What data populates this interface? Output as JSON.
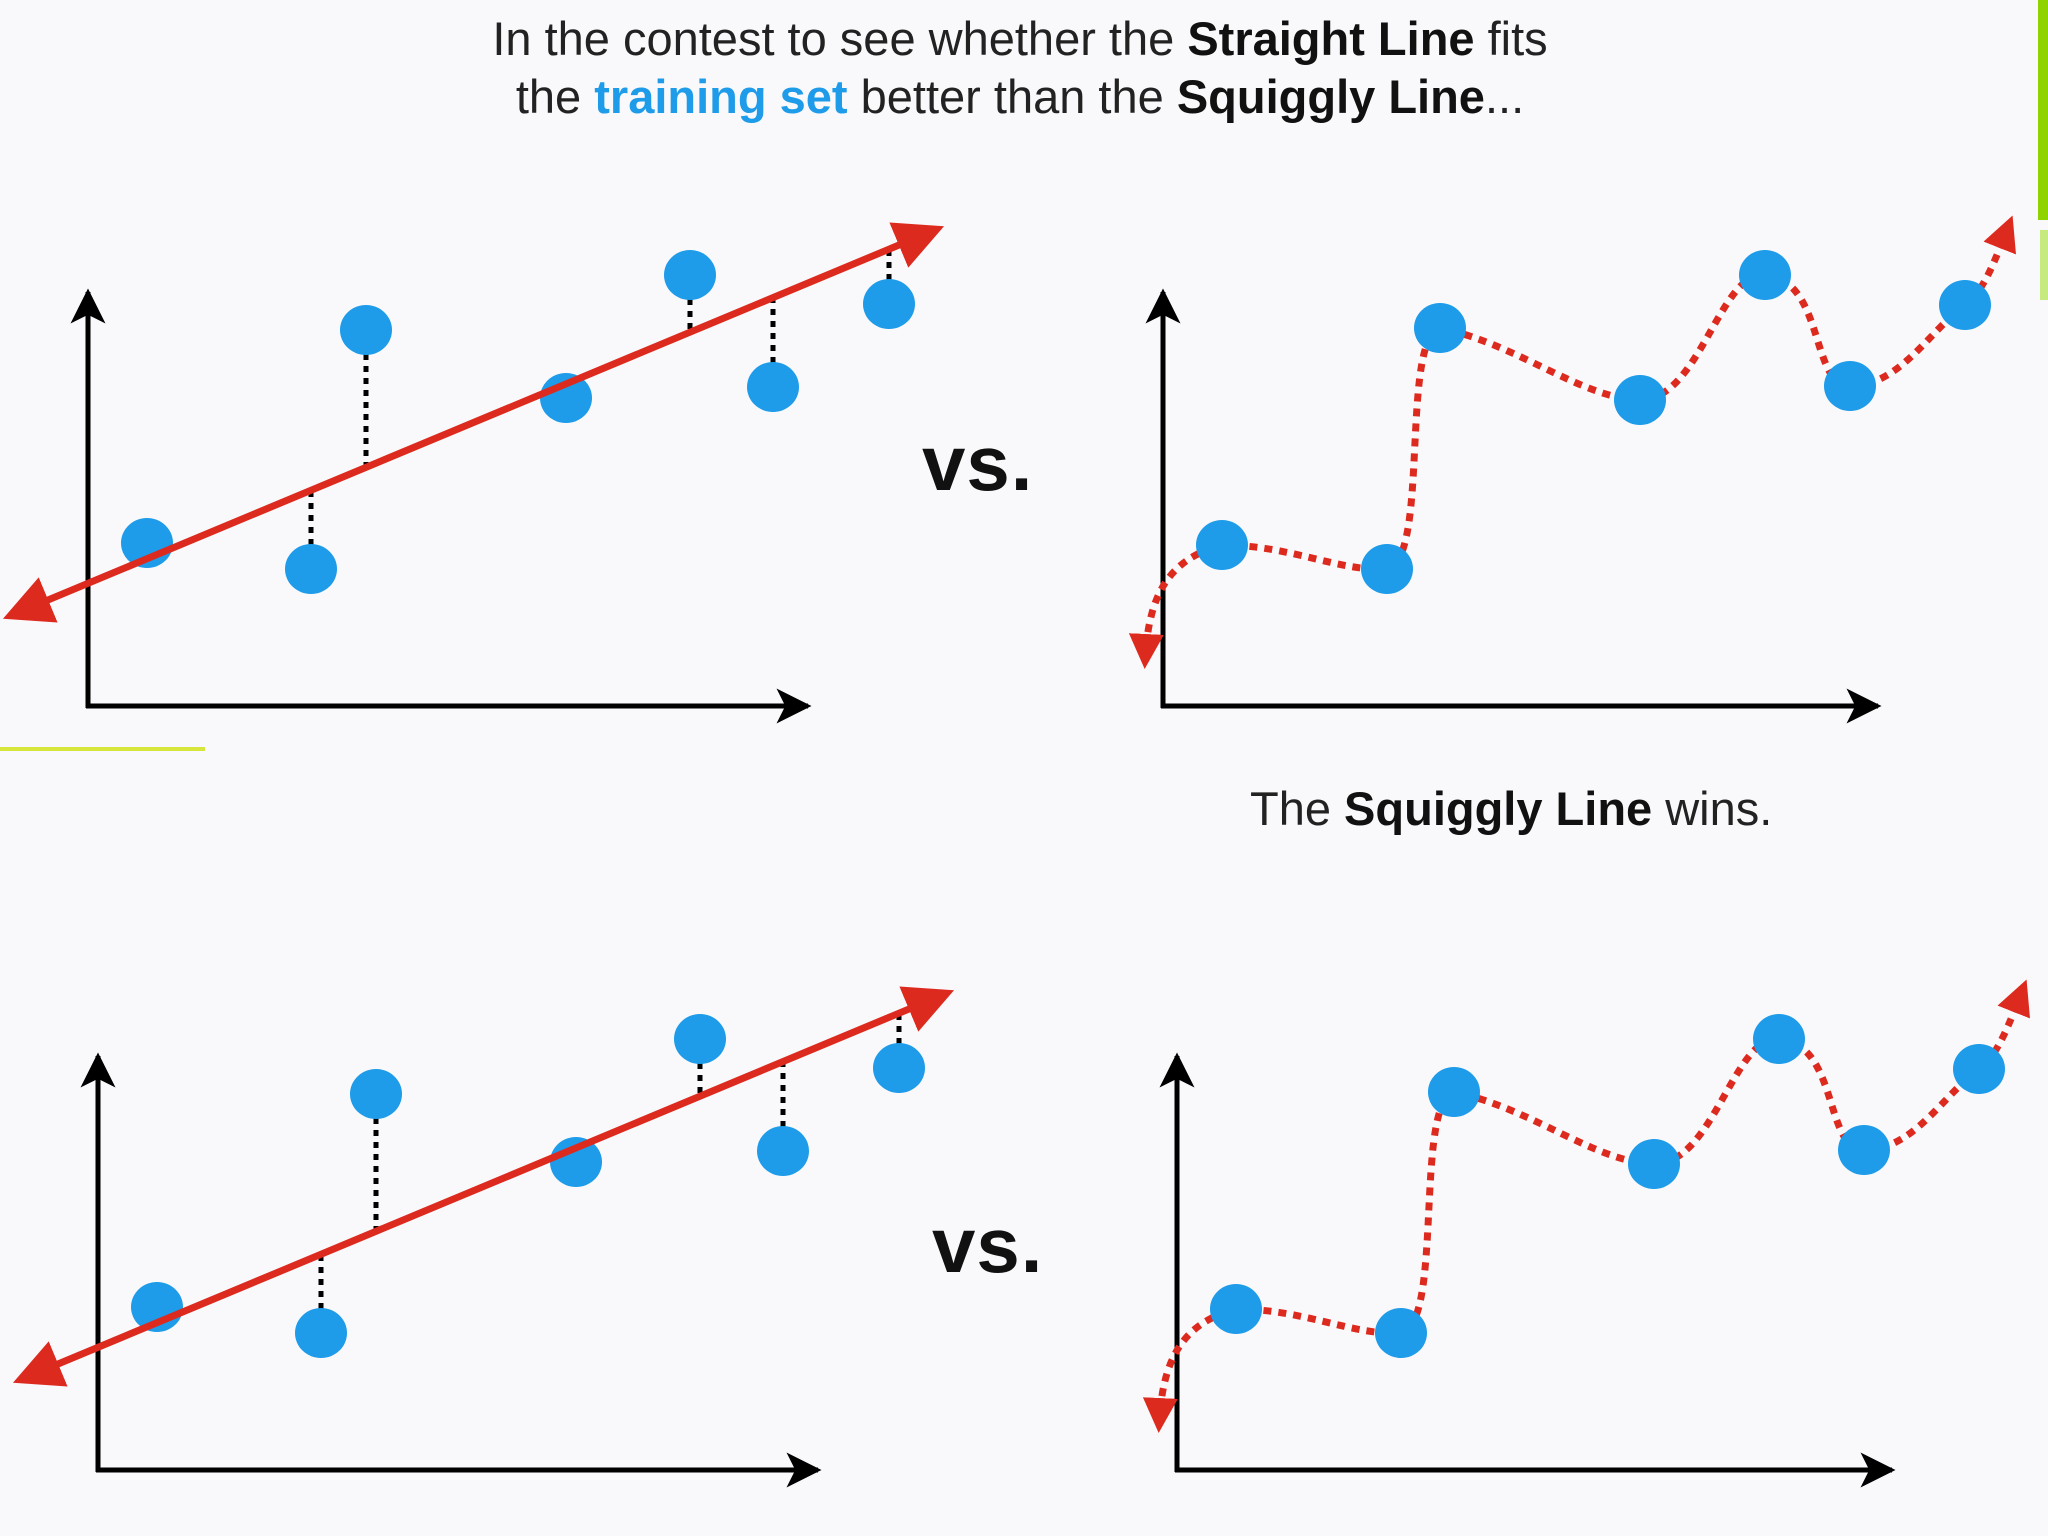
{
  "caption_top": {
    "line1_pre": "In the contest to see whether the ",
    "line1_bold": "Straight Line",
    "line1_post": " fits",
    "line2_pre": "the ",
    "line2_blue": "training set",
    "line2_mid": " better than the ",
    "line2_bold": "Squiggly Line",
    "line2_post": "..."
  },
  "vs_label": "vs.",
  "caption_bottom": {
    "pre": "The ",
    "bold": "Squiggly Line",
    "post": " wins."
  },
  "colors": {
    "point": "#1e9be9",
    "fit_line": "#dd2a1f",
    "axis": "#000000",
    "residual": "#000000",
    "accent_green": "#8fd400",
    "accent_yellow": "#d7e63a"
  },
  "panels": [
    {
      "name": "straight-line-fit",
      "style": "solid-arrow-line",
      "row": 1
    },
    {
      "name": "squiggly-line-fit",
      "style": "dotted-squiggle",
      "row": 1
    },
    {
      "name": "straight-line-fit",
      "style": "solid-arrow-line",
      "row": 2
    },
    {
      "name": "squiggly-line-fit",
      "style": "dotted-squiggle",
      "row": 2
    }
  ]
}
